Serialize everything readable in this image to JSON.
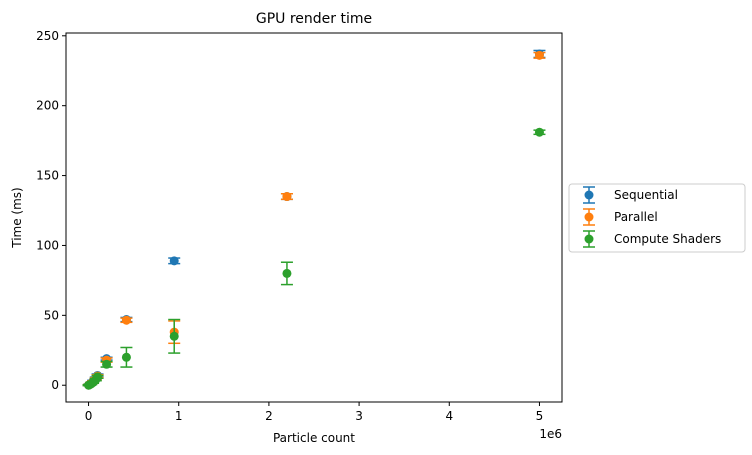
{
  "chart_data": {
    "type": "scatter",
    "title": "GPU render time",
    "xlabel": "Particle count",
    "ylabel": "Time (ms)",
    "x_offset_label": "1e6",
    "xlim": [
      -0.25,
      5.25
    ],
    "ylim": [
      -12,
      252
    ],
    "x_ticks": [
      0,
      1,
      2,
      3,
      4,
      5
    ],
    "x_tick_labels": [
      "0",
      "1",
      "2",
      "3",
      "4",
      "5"
    ],
    "y_ticks": [
      0,
      50,
      100,
      150,
      200,
      250
    ],
    "y_tick_labels": [
      "0",
      "50",
      "100",
      "150",
      "200",
      "250"
    ],
    "grid": false,
    "legend_placement": "right, outside plot",
    "error_bars": true,
    "series": [
      {
        "name": "Sequential",
        "color": "#1f77b4",
        "points": [
          {
            "x": 0.001,
            "y": 0.1,
            "err": 0.2
          },
          {
            "x": 0.01,
            "y": 0.5,
            "err": 0.3
          },
          {
            "x": 0.03,
            "y": 1.5,
            "err": 0.5
          },
          {
            "x": 0.05,
            "y": 3.0,
            "err": 0.5
          },
          {
            "x": 0.08,
            "y": 5.0,
            "err": 0.8
          },
          {
            "x": 0.1,
            "y": 7.0,
            "err": 1.0
          },
          {
            "x": 0.2,
            "y": 19.0,
            "err": 1.0
          },
          {
            "x": 0.42,
            "y": 47.0,
            "err": 1.5
          },
          {
            "x": 0.95,
            "y": 89.0,
            "err": 2.0
          },
          {
            "x": 2.2,
            "y": 135.0,
            "err": 2.0
          },
          {
            "x": 5.0,
            "y": 237.0,
            "err": 2.5
          }
        ]
      },
      {
        "name": "Parallel",
        "color": "#ff7f0e",
        "points": [
          {
            "x": 0.001,
            "y": 0.1,
            "err": 0.3
          },
          {
            "x": 0.01,
            "y": 0.4,
            "err": 0.3
          },
          {
            "x": 0.03,
            "y": 1.2,
            "err": 0.5
          },
          {
            "x": 0.05,
            "y": 2.5,
            "err": 0.6
          },
          {
            "x": 0.08,
            "y": 4.5,
            "err": 0.8
          },
          {
            "x": 0.1,
            "y": 6.5,
            "err": 1.0
          },
          {
            "x": 0.2,
            "y": 18.0,
            "err": 1.5
          },
          {
            "x": 0.42,
            "y": 46.5,
            "err": 1.5
          },
          {
            "x": 0.95,
            "y": 38.0,
            "err": 8.0
          },
          {
            "x": 2.2,
            "y": 135.0,
            "err": 2.0
          },
          {
            "x": 5.0,
            "y": 236.0,
            "err": 2.0
          }
        ]
      },
      {
        "name": "Compute Shaders",
        "color": "#2ca02c",
        "points": [
          {
            "x": 0.001,
            "y": 0.0,
            "err": 0.3
          },
          {
            "x": 0.01,
            "y": 0.3,
            "err": 0.3
          },
          {
            "x": 0.03,
            "y": 1.0,
            "err": 0.5
          },
          {
            "x": 0.05,
            "y": 2.0,
            "err": 0.6
          },
          {
            "x": 0.08,
            "y": 4.0,
            "err": 0.8
          },
          {
            "x": 0.1,
            "y": 6.0,
            "err": 1.0
          },
          {
            "x": 0.2,
            "y": 15.0,
            "err": 2.0
          },
          {
            "x": 0.42,
            "y": 20.0,
            "err": 7.0
          },
          {
            "x": 0.95,
            "y": 35.0,
            "err": 12.0
          },
          {
            "x": 2.2,
            "y": 80.0,
            "err": 8.0
          },
          {
            "x": 5.0,
            "y": 181.0,
            "err": 1.5
          }
        ]
      }
    ]
  }
}
